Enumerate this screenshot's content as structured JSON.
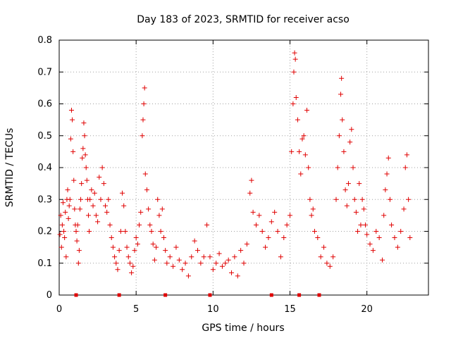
{
  "chart_data": {
    "type": "scatter",
    "title": "Day 183 of 2023, SRMTID for receiver acso",
    "xlabel": "GPS time / hours",
    "ylabel": "SRMTID / TECUs",
    "xlim": [
      0,
      24
    ],
    "ylim": [
      0,
      0.8
    ],
    "xticks": [
      0,
      5,
      10,
      15,
      20
    ],
    "yticks": [
      0,
      0.1,
      0.2,
      0.3,
      0.4,
      0.5,
      0.6,
      0.7,
      0.8
    ],
    "grid": true,
    "marker": "+",
    "color": "#e00000",
    "series": [
      {
        "name": "SRMTID",
        "points": [
          [
            0.05,
            0.19
          ],
          [
            0.1,
            0.25
          ],
          [
            0.15,
            0.15
          ],
          [
            0.2,
            0.22
          ],
          [
            0.25,
            0.29
          ],
          [
            0.3,
            0.2
          ],
          [
            0.35,
            0.18
          ],
          [
            0.4,
            0.26
          ],
          [
            0.45,
            0.12
          ],
          [
            0.5,
            0.3
          ],
          [
            0.55,
            0.33
          ],
          [
            0.6,
            0.24
          ],
          [
            0.65,
            0.28
          ],
          [
            0.7,
            0.3
          ],
          [
            0.75,
            0.49
          ],
          [
            0.8,
            0.58
          ],
          [
            0.85,
            0.55
          ],
          [
            0.9,
            0.45
          ],
          [
            0.95,
            0.36
          ],
          [
            1.0,
            0.27
          ],
          [
            1.05,
            0.22
          ],
          [
            1.1,
            0.2
          ],
          [
            1.15,
            0.17
          ],
          [
            1.2,
            0.22
          ],
          [
            1.25,
            0.1
          ],
          [
            1.3,
            0.14
          ],
          [
            1.35,
            0.27
          ],
          [
            1.4,
            0.3
          ],
          [
            1.45,
            0.35
          ],
          [
            1.5,
            0.43
          ],
          [
            1.55,
            0.46
          ],
          [
            1.6,
            0.54
          ],
          [
            1.65,
            0.5
          ],
          [
            1.7,
            0.44
          ],
          [
            1.75,
            0.4
          ],
          [
            1.8,
            0.36
          ],
          [
            1.85,
            0.3
          ],
          [
            1.9,
            0.25
          ],
          [
            1.95,
            0.2
          ],
          [
            2.0,
            0.3
          ],
          [
            2.1,
            0.33
          ],
          [
            2.2,
            0.28
          ],
          [
            2.3,
            0.32
          ],
          [
            2.4,
            0.25
          ],
          [
            2.5,
            0.23
          ],
          [
            2.6,
            0.37
          ],
          [
            2.7,
            0.3
          ],
          [
            2.8,
            0.4
          ],
          [
            2.9,
            0.35
          ],
          [
            3.0,
            0.28
          ],
          [
            3.1,
            0.26
          ],
          [
            3.2,
            0.3
          ],
          [
            3.3,
            0.22
          ],
          [
            3.4,
            0.18
          ],
          [
            3.5,
            0.15
          ],
          [
            3.6,
            0.12
          ],
          [
            3.7,
            0.1
          ],
          [
            3.8,
            0.08
          ],
          [
            3.9,
            0.14
          ],
          [
            4.0,
            0.2
          ],
          [
            4.1,
            0.32
          ],
          [
            4.2,
            0.28
          ],
          [
            4.3,
            0.2
          ],
          [
            4.4,
            0.15
          ],
          [
            4.5,
            0.12
          ],
          [
            4.6,
            0.1
          ],
          [
            4.7,
            0.07
          ],
          [
            4.8,
            0.09
          ],
          [
            4.9,
            0.14
          ],
          [
            5.0,
            0.18
          ],
          [
            5.1,
            0.16
          ],
          [
            5.2,
            0.22
          ],
          [
            5.3,
            0.26
          ],
          [
            5.4,
            0.5
          ],
          [
            5.45,
            0.55
          ],
          [
            5.5,
            0.6
          ],
          [
            5.55,
            0.65
          ],
          [
            5.6,
            0.38
          ],
          [
            5.7,
            0.33
          ],
          [
            5.8,
            0.27
          ],
          [
            5.9,
            0.22
          ],
          [
            6.0,
            0.2
          ],
          [
            6.1,
            0.16
          ],
          [
            6.2,
            0.11
          ],
          [
            6.3,
            0.15
          ],
          [
            6.4,
            0.3
          ],
          [
            6.5,
            0.25
          ],
          [
            6.6,
            0.2
          ],
          [
            6.7,
            0.27
          ],
          [
            6.8,
            0.18
          ],
          [
            6.9,
            0.14
          ],
          [
            7.0,
            0.1
          ],
          [
            7.2,
            0.12
          ],
          [
            7.4,
            0.09
          ],
          [
            7.6,
            0.15
          ],
          [
            7.8,
            0.11
          ],
          [
            8.0,
            0.08
          ],
          [
            8.2,
            0.1
          ],
          [
            8.4,
            0.06
          ],
          [
            8.6,
            0.12
          ],
          [
            8.8,
            0.17
          ],
          [
            9.0,
            0.14
          ],
          [
            9.2,
            0.1
          ],
          [
            9.4,
            0.12
          ],
          [
            9.6,
            0.22
          ],
          [
            9.8,
            0.12
          ],
          [
            10.0,
            0.08
          ],
          [
            10.2,
            0.1
          ],
          [
            10.4,
            0.13
          ],
          [
            10.6,
            0.09
          ],
          [
            10.8,
            0.1
          ],
          [
            11.0,
            0.11
          ],
          [
            11.2,
            0.07
          ],
          [
            11.4,
            0.12
          ],
          [
            11.6,
            0.06
          ],
          [
            11.8,
            0.14
          ],
          [
            12.0,
            0.1
          ],
          [
            12.2,
            0.16
          ],
          [
            12.4,
            0.32
          ],
          [
            12.5,
            0.36
          ],
          [
            12.6,
            0.26
          ],
          [
            12.8,
            0.22
          ],
          [
            13.0,
            0.25
          ],
          [
            13.2,
            0.2
          ],
          [
            13.4,
            0.15
          ],
          [
            13.6,
            0.18
          ],
          [
            13.8,
            0.23
          ],
          [
            14.0,
            0.26
          ],
          [
            14.2,
            0.2
          ],
          [
            14.4,
            0.12
          ],
          [
            14.6,
            0.18
          ],
          [
            14.8,
            0.22
          ],
          [
            15.0,
            0.25
          ],
          [
            15.1,
            0.45
          ],
          [
            15.2,
            0.6
          ],
          [
            15.25,
            0.7
          ],
          [
            15.3,
            0.76
          ],
          [
            15.35,
            0.74
          ],
          [
            15.4,
            0.62
          ],
          [
            15.5,
            0.55
          ],
          [
            15.6,
            0.45
          ],
          [
            15.7,
            0.38
          ],
          [
            15.8,
            0.49
          ],
          [
            15.9,
            0.5
          ],
          [
            16.0,
            0.44
          ],
          [
            16.1,
            0.58
          ],
          [
            16.2,
            0.4
          ],
          [
            16.3,
            0.3
          ],
          [
            16.4,
            0.25
          ],
          [
            16.5,
            0.27
          ],
          [
            16.6,
            0.2
          ],
          [
            16.8,
            0.18
          ],
          [
            17.0,
            0.12
          ],
          [
            17.2,
            0.15
          ],
          [
            17.4,
            0.1
          ],
          [
            17.6,
            0.09
          ],
          [
            17.8,
            0.12
          ],
          [
            18.0,
            0.3
          ],
          [
            18.1,
            0.4
          ],
          [
            18.2,
            0.5
          ],
          [
            18.3,
            0.63
          ],
          [
            18.35,
            0.68
          ],
          [
            18.4,
            0.55
          ],
          [
            18.5,
            0.45
          ],
          [
            18.6,
            0.33
          ],
          [
            18.7,
            0.28
          ],
          [
            18.8,
            0.35
          ],
          [
            18.9,
            0.48
          ],
          [
            19.0,
            0.52
          ],
          [
            19.1,
            0.4
          ],
          [
            19.2,
            0.3
          ],
          [
            19.3,
            0.26
          ],
          [
            19.4,
            0.2
          ],
          [
            19.5,
            0.35
          ],
          [
            19.6,
            0.22
          ],
          [
            19.7,
            0.3
          ],
          [
            19.8,
            0.27
          ],
          [
            19.9,
            0.22
          ],
          [
            20.0,
            0.19
          ],
          [
            20.2,
            0.16
          ],
          [
            20.4,
            0.14
          ],
          [
            20.6,
            0.2
          ],
          [
            20.8,
            0.18
          ],
          [
            21.0,
            0.11
          ],
          [
            21.1,
            0.25
          ],
          [
            21.2,
            0.33
          ],
          [
            21.3,
            0.38
          ],
          [
            21.4,
            0.43
          ],
          [
            21.5,
            0.3
          ],
          [
            21.6,
            0.22
          ],
          [
            21.8,
            0.18
          ],
          [
            22.0,
            0.15
          ],
          [
            22.2,
            0.2
          ],
          [
            22.4,
            0.27
          ],
          [
            22.5,
            0.4
          ],
          [
            22.6,
            0.44
          ],
          [
            22.7,
            0.3
          ],
          [
            22.8,
            0.18
          ]
        ]
      }
    ],
    "axis_markers": [
      1.1,
      3.9,
      6.9,
      9.8,
      13.8,
      15.6,
      16.9
    ]
  }
}
